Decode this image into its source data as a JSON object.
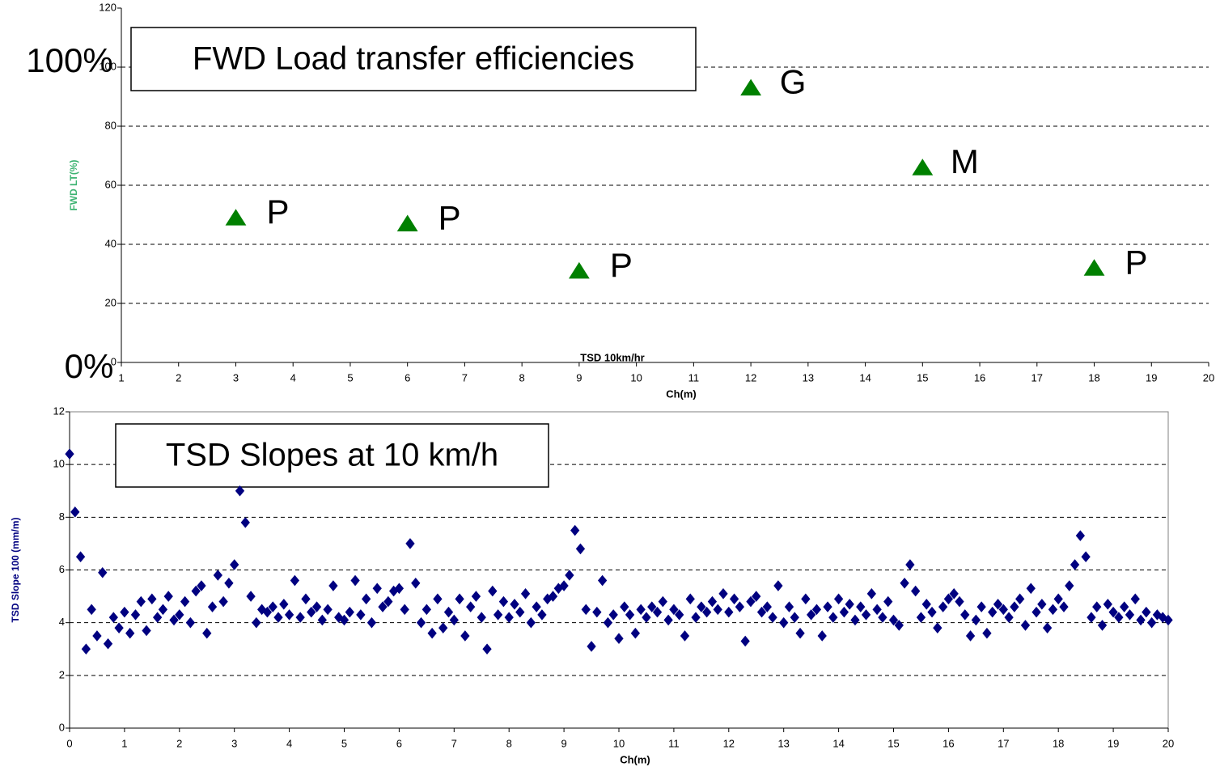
{
  "chart_data": [
    {
      "type": "scatter",
      "title": "FWD Load transfer efficiencies",
      "xlabel": "Ch(m)",
      "ylabel": "FWD LT(%)",
      "ylabel_color": "#3cb371",
      "annotations": [
        "100%",
        "0%",
        "TSD 10km/hr"
      ],
      "x": [
        3,
        6,
        9,
        12,
        15,
        18
      ],
      "values": [
        49,
        47,
        31,
        93,
        66,
        32
      ],
      "point_labels": [
        "P",
        "P",
        "P",
        "G",
        "M",
        "P"
      ],
      "color": "#008000",
      "marker": "triangle",
      "xlim": [
        1,
        20
      ],
      "xticks": [
        1,
        2,
        3,
        4,
        5,
        6,
        7,
        8,
        9,
        10,
        11,
        12,
        13,
        14,
        15,
        16,
        17,
        18,
        19,
        20
      ],
      "ylim": [
        0,
        120
      ],
      "yticks": [
        0,
        20,
        40,
        60,
        80,
        100,
        120
      ],
      "grid": true,
      "frame": false
    },
    {
      "type": "scatter",
      "title": "TSD Slopes at 10 km/h",
      "xlabel": "Ch(m)",
      "ylabel": "TSD Slope 100 (mm/m)",
      "ylabel_color": "#000080",
      "x": [
        0,
        0.1,
        0.2,
        0.3,
        0.4,
        0.5,
        0.6,
        0.7,
        0.8,
        0.9,
        1,
        1.1,
        1.2,
        1.3,
        1.4,
        1.5,
        1.6,
        1.7,
        1.8,
        1.9,
        2,
        2.1,
        2.2,
        2.3,
        2.4,
        2.5,
        2.6,
        2.7,
        2.8,
        2.9,
        3,
        3.1,
        3.2,
        3.3,
        3.4,
        3.5,
        3.6,
        3.7,
        3.8,
        3.9,
        4,
        4.1,
        4.2,
        4.3,
        4.4,
        4.5,
        4.6,
        4.7,
        4.8,
        4.9,
        5,
        5.1,
        5.2,
        5.3,
        5.4,
        5.5,
        5.6,
        5.7,
        5.8,
        5.9,
        6,
        6.1,
        6.2,
        6.3,
        6.4,
        6.5,
        6.6,
        6.7,
        6.8,
        6.9,
        7,
        7.1,
        7.2,
        7.3,
        7.4,
        7.5,
        7.6,
        7.7,
        7.8,
        7.9,
        8,
        8.1,
        8.2,
        8.3,
        8.4,
        8.5,
        8.6,
        8.7,
        8.8,
        8.9,
        9,
        9.1,
        9.2,
        9.3,
        9.4,
        9.5,
        9.6,
        9.7,
        9.8,
        9.9,
        10,
        10.1,
        10.2,
        10.3,
        10.4,
        10.5,
        10.6,
        10.7,
        10.8,
        10.9,
        11,
        11.1,
        11.2,
        11.3,
        11.4,
        11.5,
        11.6,
        11.7,
        11.8,
        11.9,
        12,
        12.1,
        12.2,
        12.3,
        12.4,
        12.5,
        12.6,
        12.7,
        12.8,
        12.9,
        13,
        13.1,
        13.2,
        13.3,
        13.4,
        13.5,
        13.6,
        13.7,
        13.8,
        13.9,
        14,
        14.1,
        14.2,
        14.3,
        14.4,
        14.5,
        14.6,
        14.7,
        14.8,
        14.9,
        15,
        15.1,
        15.2,
        15.3,
        15.4,
        15.5,
        15.6,
        15.7,
        15.8,
        15.9,
        16,
        16.1,
        16.2,
        16.3,
        16.4,
        16.5,
        16.6,
        16.7,
        16.8,
        16.9,
        17,
        17.1,
        17.2,
        17.3,
        17.4,
        17.5,
        17.6,
        17.7,
        17.8,
        17.9,
        18,
        18.1,
        18.2,
        18.3,
        18.4,
        18.5,
        18.6,
        18.7,
        18.8,
        18.9,
        19,
        19.1,
        19.2,
        19.3,
        19.4,
        19.5,
        19.6,
        19.7,
        19.8,
        19.9,
        20
      ],
      "values": [
        10.4,
        8.2,
        6.5,
        3.0,
        4.5,
        3.5,
        5.9,
        3.2,
        4.2,
        3.8,
        4.4,
        3.6,
        4.3,
        4.8,
        3.7,
        4.9,
        4.2,
        4.5,
        5.0,
        4.1,
        4.3,
        4.8,
        4.0,
        5.2,
        5.4,
        3.6,
        4.6,
        5.8,
        4.8,
        5.5,
        6.2,
        9.0,
        7.8,
        5.0,
        4.0,
        4.5,
        4.4,
        4.6,
        4.2,
        4.7,
        4.3,
        5.6,
        4.2,
        4.9,
        4.4,
        4.6,
        4.1,
        4.5,
        5.4,
        4.2,
        4.1,
        4.4,
        5.6,
        4.3,
        4.9,
        4.0,
        5.3,
        4.6,
        4.8,
        5.2,
        5.3,
        4.5,
        7.0,
        5.5,
        4.0,
        4.5,
        3.6,
        4.9,
        3.8,
        4.4,
        4.1,
        4.9,
        3.5,
        4.6,
        5.0,
        4.2,
        3.0,
        5.2,
        4.3,
        4.8,
        4.2,
        4.7,
        4.4,
        5.1,
        4.0,
        4.6,
        4.3,
        4.9,
        5.0,
        5.3,
        5.4,
        5.8,
        7.5,
        6.8,
        4.5,
        3.1,
        4.4,
        5.6,
        4.0,
        4.3,
        3.4,
        4.6,
        4.3,
        3.6,
        4.5,
        4.2,
        4.6,
        4.4,
        4.8,
        4.1,
        4.5,
        4.3,
        3.5,
        4.9,
        4.2,
        4.6,
        4.4,
        4.8,
        4.5,
        5.1,
        4.4,
        4.9,
        4.6,
        3.3,
        4.8,
        5.0,
        4.4,
        4.6,
        4.2,
        5.4,
        4.0,
        4.6,
        4.2,
        3.6,
        4.9,
        4.3,
        4.5,
        3.5,
        4.6,
        4.2,
        4.9,
        4.4,
        4.7,
        4.1,
        4.6,
        4.3,
        5.1,
        4.5,
        4.2,
        4.8,
        4.1,
        3.9,
        5.5,
        6.2,
        5.2,
        4.2,
        4.7,
        4.4,
        3.8,
        4.6,
        4.9,
        5.1,
        4.8,
        4.3,
        3.5,
        4.1,
        4.6,
        3.6,
        4.4,
        4.7,
        4.5,
        4.2,
        4.6,
        4.9,
        3.9,
        5.3,
        4.4,
        4.7,
        3.8,
        4.5,
        4.9,
        4.6,
        5.4,
        6.2,
        7.3,
        6.5,
        4.2,
        4.6,
        3.9,
        4.7,
        4.4,
        4.2,
        4.6,
        4.3,
        4.9,
        4.1,
        4.4,
        4.0,
        4.3,
        4.2,
        4.1
      ],
      "color": "#000080",
      "marker": "diamond",
      "xlim": [
        0,
        20
      ],
      "xticks": [
        0,
        1,
        2,
        3,
        4,
        5,
        6,
        7,
        8,
        9,
        10,
        11,
        12,
        13,
        14,
        15,
        16,
        17,
        18,
        19,
        20
      ],
      "ylim": [
        0,
        12
      ],
      "yticks": [
        0,
        2,
        4,
        6,
        8,
        10,
        12
      ],
      "grid": true,
      "frame": true
    }
  ]
}
